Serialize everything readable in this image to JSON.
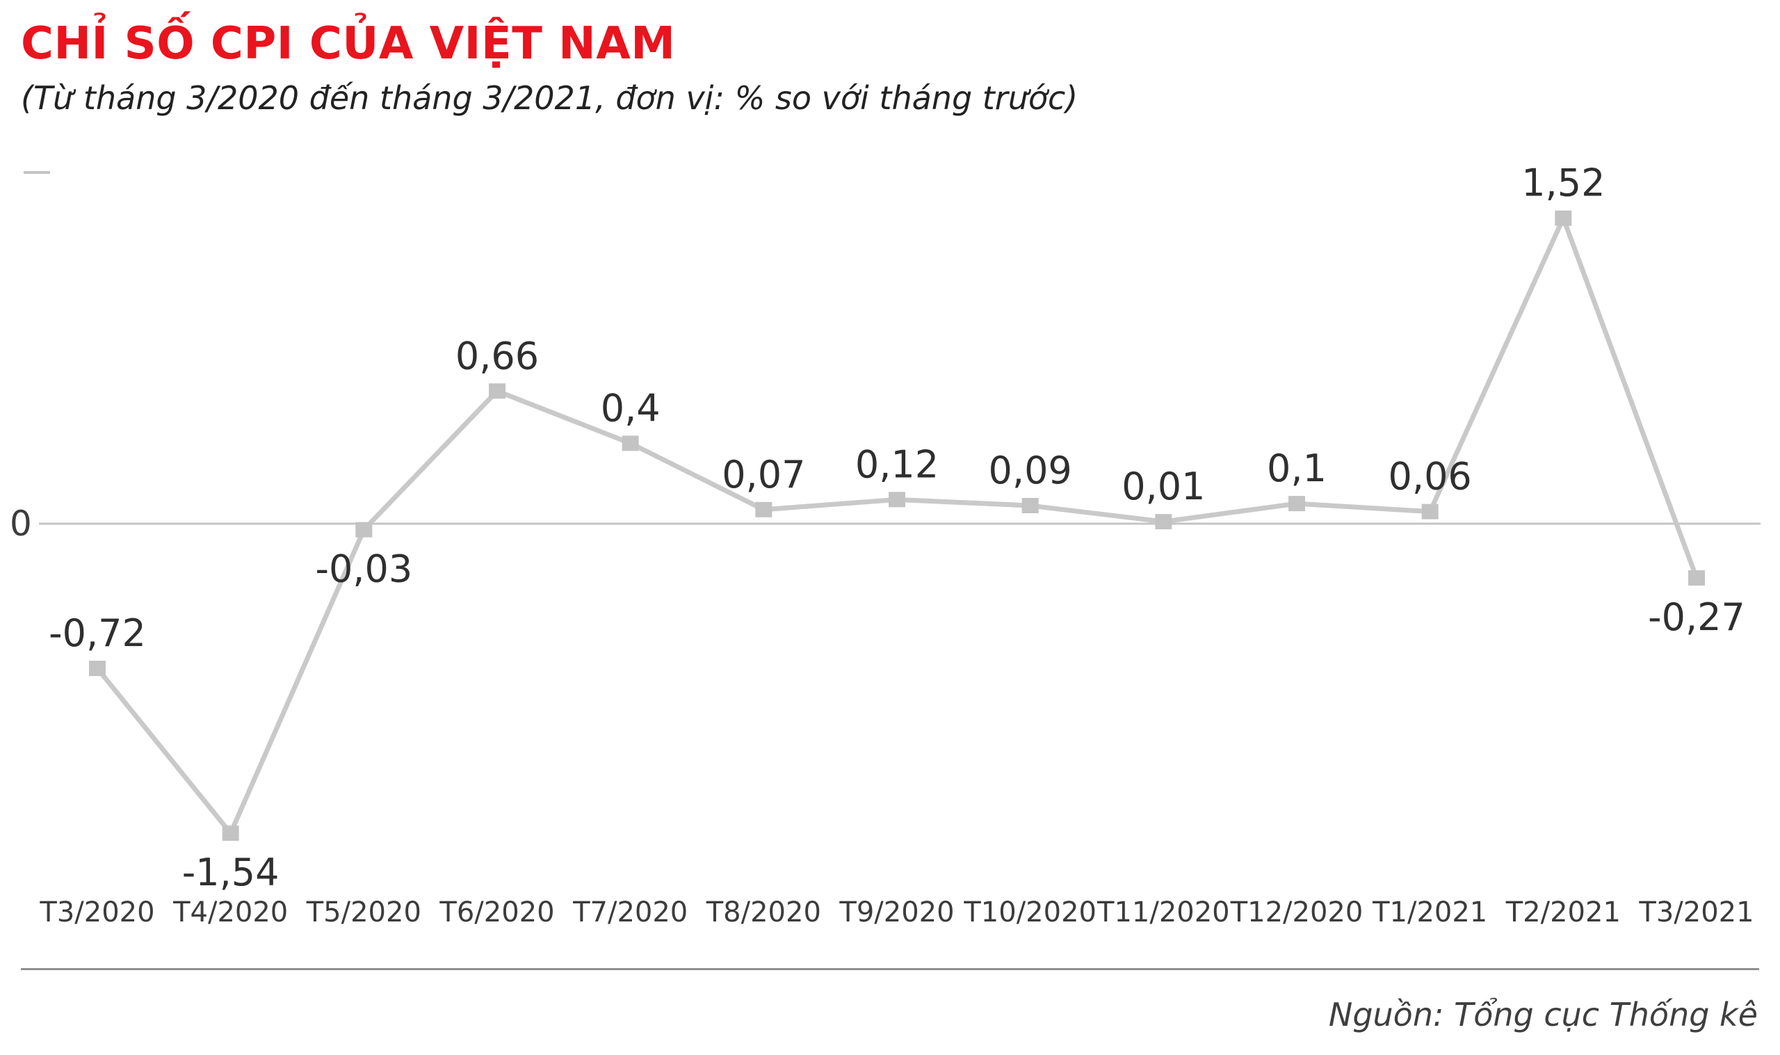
{
  "header": {
    "title": "CHỈ SỐ CPI CỦA VIỆT NAM",
    "subtitle": "(Từ tháng 3/2020 đến tháng 3/2021, đơn vị: % so với tháng trước)"
  },
  "footer": {
    "source": "Nguồn: Tổng cục Thống kê"
  },
  "chart_data": {
    "type": "line",
    "title": "CHỈ SỐ CPI CỦA VIỆT NAM",
    "subtitle": "(Từ tháng 3/2020 đến tháng 3/2021, đơn vị: % so với tháng trước)",
    "unit": "% so với tháng trước",
    "categories": [
      "T3/2020",
      "T4/2020",
      "T5/2020",
      "T6/2020",
      "T7/2020",
      "T8/2020",
      "T9/2020",
      "T10/2020",
      "T11/2020",
      "T12/2020",
      "T1/2021",
      "T2/2021",
      "T3/2021"
    ],
    "values": [
      -0.72,
      -1.54,
      -0.03,
      0.66,
      0.4,
      0.07,
      0.12,
      0.09,
      0.01,
      0.1,
      0.06,
      1.52,
      -0.27
    ],
    "value_labels": [
      "-0,72",
      "-1,54",
      "-0,03",
      "0,66",
      "0,4",
      "0,07",
      "0,12",
      "0,09",
      "0,01",
      "0,1",
      "0,06",
      "1,52",
      "-0,27"
    ],
    "label_below": [
      false,
      true,
      true,
      false,
      false,
      false,
      false,
      false,
      false,
      false,
      false,
      false,
      true
    ],
    "zero_label": "0",
    "ylim": [
      -1.9,
      1.8
    ],
    "grid": false,
    "legend": false,
    "colors": {
      "title": "#e9141d",
      "line": "#c9c9c9",
      "marker": "#c3c3c3",
      "zero_line": "#c4c4c4",
      "value_label": "#2f2f2f",
      "axis_label": "#3c3c3c",
      "source_text": "#3f3f3f"
    }
  }
}
